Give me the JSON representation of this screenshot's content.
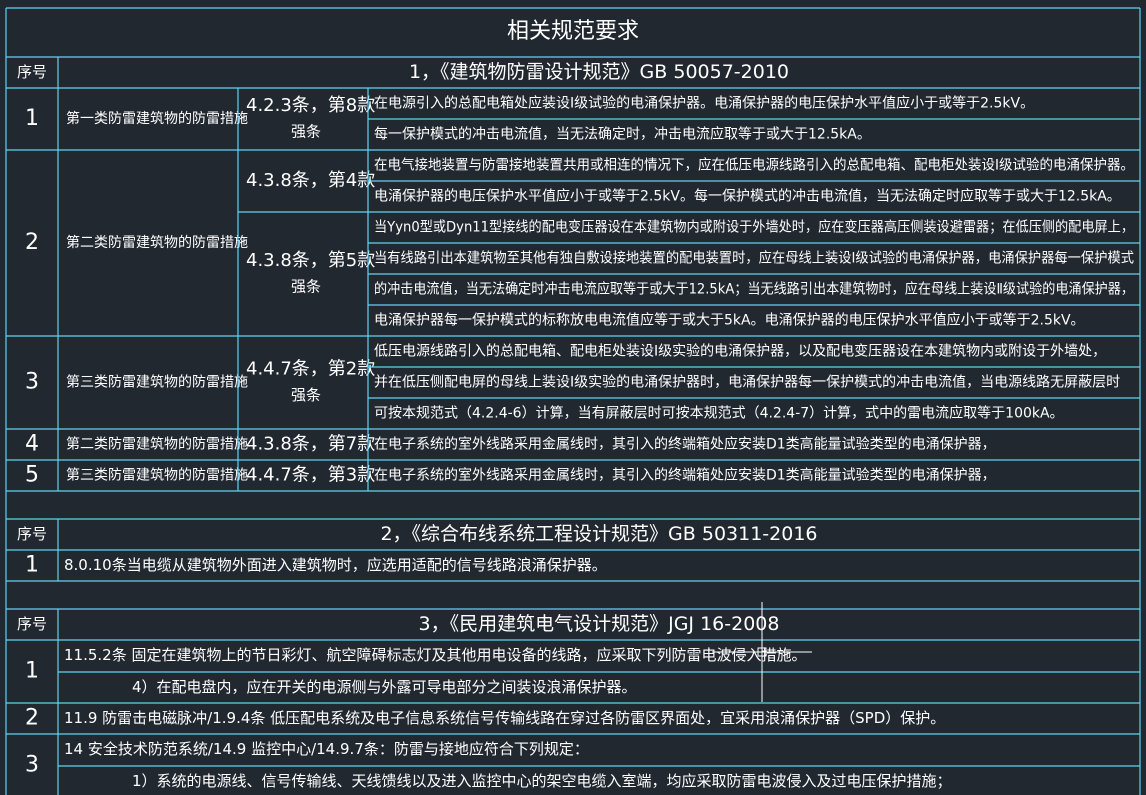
{
  "title": "相关规范要求",
  "sections": [
    {
      "no_header": "序号",
      "heading": "1，《建筑物防雷设计规范》GB 50057-2010",
      "rows": [
        {
          "no": "1",
          "category": "第一类防雷建筑物的防雷措施",
          "parts": [
            {
              "clause": [
                "4.2.3条，第8款",
                "强条"
              ],
              "lines": [
                "在电源引入的总配电箱处应装设Ⅰ级试验的电涌保护器。电涌保护器的电压保护水平值应小于或等于2.5kV。",
                "每一保护模式的冲击电流值，当无法确定时，冲击电流应取等于或大于12.5kA。"
              ]
            }
          ]
        },
        {
          "no": "2",
          "category": "第二类防雷建筑物的防雷措施",
          "parts": [
            {
              "clause": [
                "4.3.8条，第4款"
              ],
              "lines": [
                "在电气接地装置与防雷接地装置共用或相连的情况下，应在低压电源线路引入的总配电箱、配电柜处装设Ⅰ级试验的电涌保护器。",
                "电涌保护器的电压保护水平值应小于或等于2.5kV。每一保护模式的冲击电流值，当无法确定时应取等于或大于12.5kA。"
              ]
            },
            {
              "clause": [
                "4.3.8条，第5款",
                "强条"
              ],
              "lines": [
                "当Yyn0型或Dyn11型接线的配电变压器设在本建筑物内或附设于外墙处时，应在变压器高压侧装设避雷器；在低压侧的配电屏上，",
                "当有线路引出本建筑物至其他有独自敷设接地装置的配电装置时，应在母线上装设Ⅰ级试验的电涌保护器，电涌保护器每一保护模式",
                "的冲击电流值，当无法确定时冲击电流应取等于或大于12.5kA；当无线路引出本建筑物时，应在母线上装设Ⅱ级试验的电涌保护器，",
                "电涌保护器每一保护模式的标称放电电流值应等于或大于5kA。电涌保护器的电压保护水平值应小于或等于2.5kV。"
              ]
            }
          ]
        },
        {
          "no": "3",
          "category": "第三类防雷建筑物的防雷措施",
          "parts": [
            {
              "clause": [
                "4.4.7条，第2款",
                "强条"
              ],
              "lines": [
                "低压电源线路引入的总配电箱、配电柜处装设Ⅰ级实验的电涌保护器，以及配电变压器设在本建筑物内或附设于外墙处，",
                "并在低压侧配电屏的母线上装设Ⅰ级实验的电涌保护器时，电涌保护器每一保护模式的冲击电流值，当电源线路无屏蔽层时",
                "可按本规范式（4.2.4-6）计算，当有屏蔽层时可按本规范式（4.2.4-7）计算，式中的雷电流应取等于100kA。"
              ]
            }
          ]
        },
        {
          "no": "4",
          "category": "第二类防雷建筑物的防雷措施",
          "parts": [
            {
              "clause": [
                "4.3.8条，第7款"
              ],
              "lines": [
                "在电子系统的室外线路采用金属线时，其引入的终端箱处应安装D1类高能量试验类型的电涌保护器，"
              ]
            }
          ]
        },
        {
          "no": "5",
          "category": "第三类防雷建筑物的防雷措施",
          "parts": [
            {
              "clause": [
                "4.4.7条，第3款"
              ],
              "lines": [
                "在电子系统的室外线路采用金属线时，其引入的终端箱处应安装D1类高能量试验类型的电涌保护器，"
              ]
            }
          ]
        }
      ]
    },
    {
      "no_header": "序号",
      "heading": "2，《综合布线系统工程设计规范》GB 50311-2016",
      "rows": [
        {
          "no": "1",
          "lines": [
            "8.0.10条当电缆从建筑物外面进入建筑物时，应选用适配的信号线路浪涌保护器。"
          ]
        }
      ]
    },
    {
      "no_header": "序号",
      "heading": "3，《民用建筑电气设计规范》JGJ 16-2008",
      "rows": [
        {
          "no": "1",
          "lines": [
            "11.5.2条 固定在建筑物上的节日彩灯、航空障碍标志灯及其他用电设备的线路，应采取下列防雷电波侵入措施。",
            "4）在配电盘内，应在开关的电源侧与外露可导电部分之间装设浪涌保护器。"
          ]
        },
        {
          "no": "2",
          "lines": [
            "11.9 防雷击电磁脉冲/1.9.4条 低压配电系统及电子信息系统信号传输线路在穿过各防雷区界面处，宜采用浪涌保护器（SPD）保护。"
          ]
        },
        {
          "no": "3",
          "lines": [
            "14 安全技术防范系统/14.9 监控中心/14.9.7条：防雷与接地应符合下列规定：",
            "1）系统的电源线、信号传输线、天线馈线以及进入监控中心的架空电缆入室端，均应采取防雷电波侵入及过电压保护措施；"
          ]
        }
      ]
    }
  ]
}
